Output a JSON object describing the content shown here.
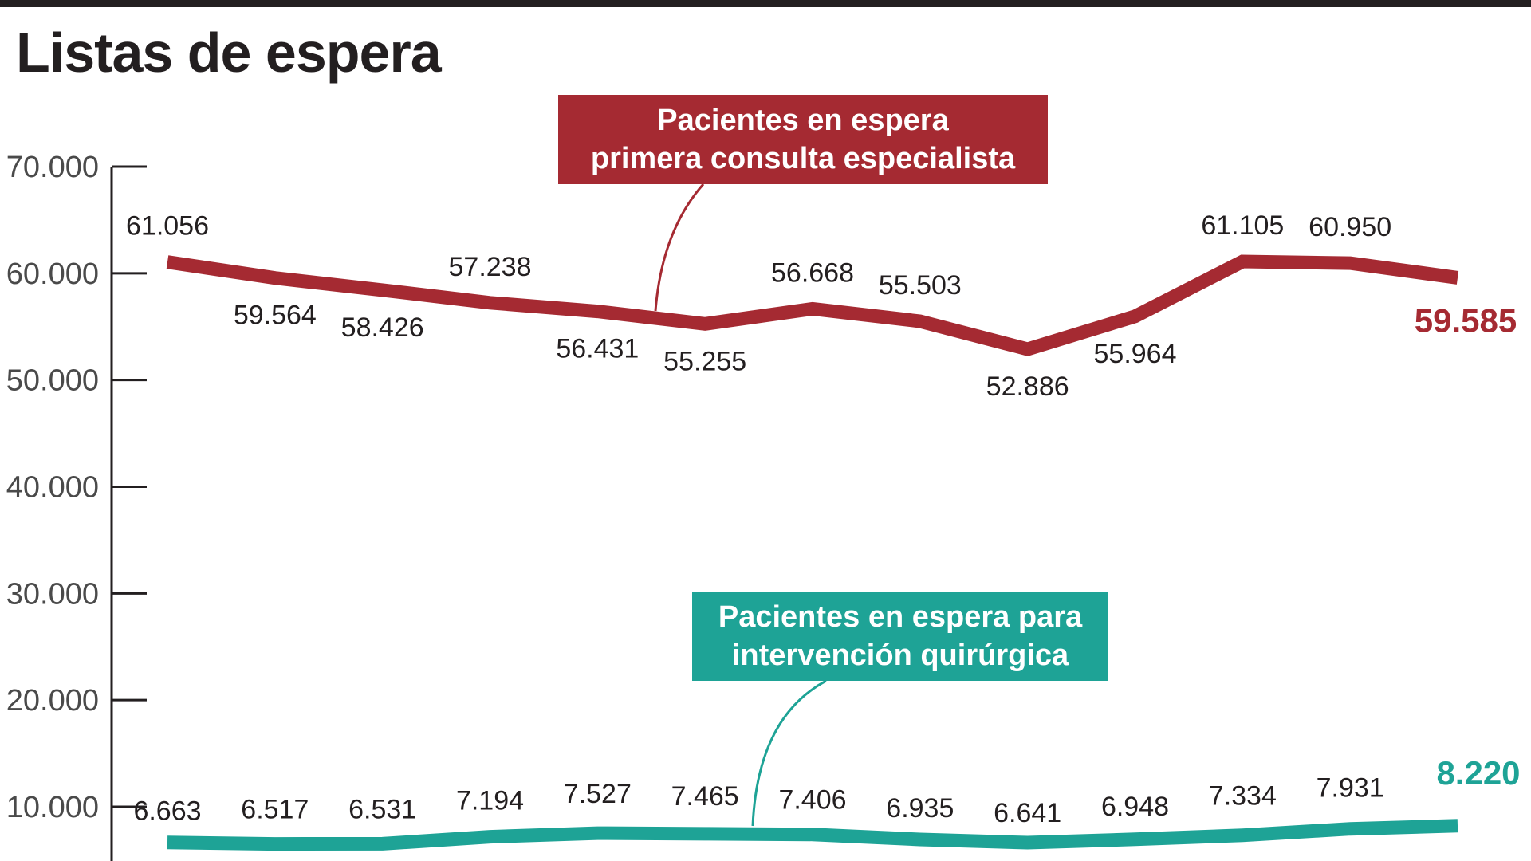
{
  "header": {
    "title": "Listas de espera"
  },
  "colors": {
    "red": "#a52a32",
    "teal": "#1ea396",
    "axis": "#231f20"
  },
  "chart_data": {
    "type": "line",
    "title": "Listas de espera",
    "xlabel": "",
    "ylabel": "",
    "ylim": [
      0,
      70000
    ],
    "yticks": [
      10000,
      20000,
      30000,
      40000,
      50000,
      60000,
      70000
    ],
    "ytick_labels": [
      "10.000",
      "20.000",
      "30.000",
      "40.000",
      "50.000",
      "60.000",
      "70.000"
    ],
    "grid": false,
    "series": [
      {
        "name": "Pacientes en espera primera consulta especialista",
        "label_lines": [
          "Pacientes en espera",
          "primera consulta especialista"
        ],
        "color": "#a52a32",
        "values": [
          61056,
          59564,
          58426,
          57238,
          56431,
          55255,
          56668,
          55503,
          52886,
          55964,
          61105,
          60950,
          59585
        ],
        "labels": [
          "61.056",
          "59.564",
          "58.426",
          "57.238",
          "56.431",
          "55.255",
          "56.668",
          "55.503",
          "52.886",
          "55.964",
          "61.105",
          "60.950",
          "59.585"
        ]
      },
      {
        "name": "Pacientes en espera para intervención quirúrgica",
        "label_lines": [
          "Pacientes en espera para",
          "intervención quirúrgica"
        ],
        "color": "#1ea396",
        "values": [
          6663,
          6517,
          6531,
          7194,
          7527,
          7465,
          7406,
          6935,
          6641,
          6948,
          7334,
          7931,
          8220
        ],
        "labels": [
          "6.663",
          "6.517",
          "6.531",
          "7.194",
          "7.527",
          "7.465",
          "7.406",
          "6.935",
          "6.641",
          "6.948",
          "7.334",
          "7.931",
          "8.220"
        ]
      }
    ]
  }
}
